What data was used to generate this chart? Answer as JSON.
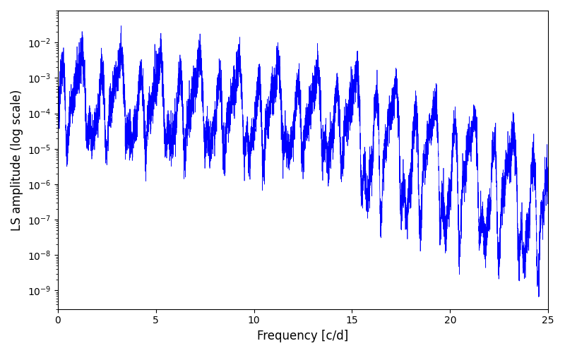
{
  "xlabel": "Frequency [c/d]",
  "ylabel": "LS amplitude (log scale)",
  "xlim": [
    0,
    25
  ],
  "ylim_min": 3e-10,
  "ylim_max": 0.08,
  "line_color": "#0000ff",
  "background_color": "#ffffff",
  "line_width": 0.5,
  "freq_min": 0.001,
  "freq_max": 25.0,
  "n_points": 8000,
  "seed": 7
}
